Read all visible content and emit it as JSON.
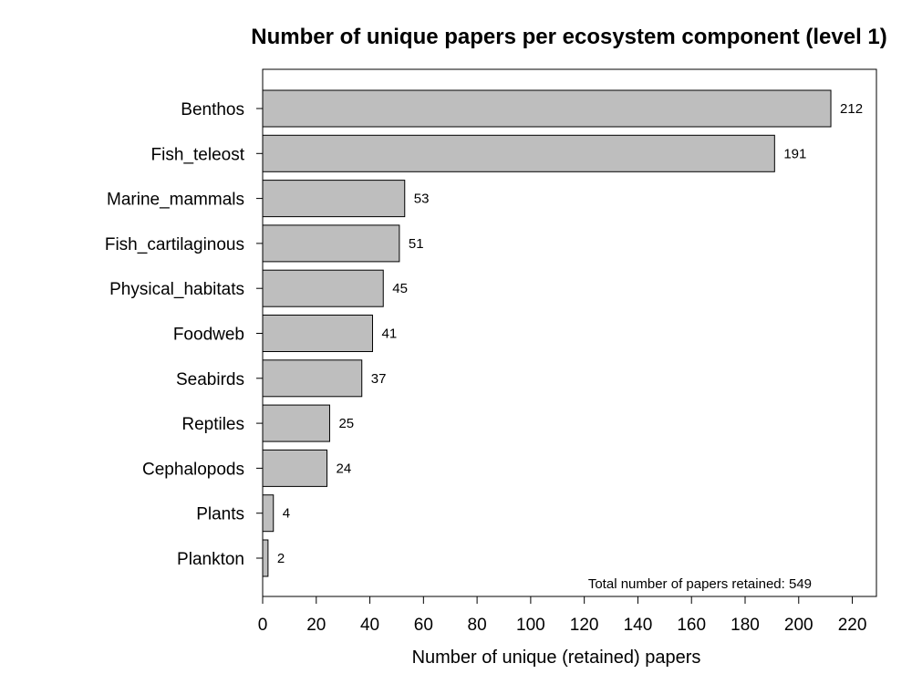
{
  "chart_data": {
    "type": "bar",
    "orientation": "horizontal",
    "title": "Number of unique papers per ecosystem component (level 1)",
    "xlabel": "Number of unique (retained) papers",
    "ylabel": "",
    "categories": [
      "Benthos",
      "Fish_teleost",
      "Marine_mammals",
      "Fish_cartilaginous",
      "Physical_habitats",
      "Foodweb",
      "Seabirds",
      "Reptiles",
      "Cephalopods",
      "Plants",
      "Plankton"
    ],
    "values": [
      212,
      191,
      53,
      51,
      45,
      41,
      37,
      25,
      24,
      4,
      2
    ],
    "value_labels": [
      "212",
      "191",
      "53",
      "51",
      "45",
      "41",
      "37",
      "25",
      "24",
      "4",
      "2"
    ],
    "xlim": [
      0,
      229
    ],
    "xticks": [
      0,
      20,
      40,
      60,
      80,
      100,
      120,
      140,
      160,
      180,
      200,
      220
    ],
    "xtick_labels": [
      "0",
      "20",
      "40",
      "60",
      "80",
      "100",
      "120",
      "140",
      "160",
      "180",
      "200",
      "220"
    ],
    "annotation": "Total number of papers retained: 549",
    "bar_color": "#bebebe",
    "edge_color": "#000000",
    "grid": false,
    "legend": "none"
  }
}
